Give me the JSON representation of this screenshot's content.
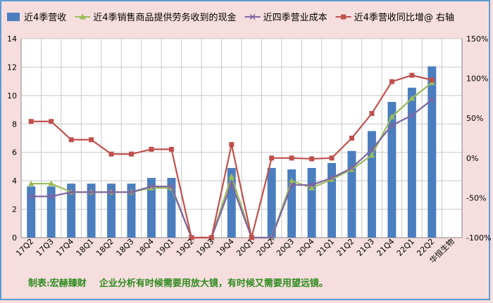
{
  "chart_data": {
    "type": "bar+line",
    "categories": [
      "17Q2",
      "17Q3",
      "17Q4",
      "18Q1",
      "18Q2",
      "18Q3",
      "18Q4",
      "19Q1",
      "19Q2",
      "19Q3",
      "19Q4",
      "20Q1",
      "20Q2",
      "20Q3",
      "20Q4",
      "21Q1",
      "21Q2",
      "21Q3",
      "21Q4",
      "22Q1",
      "22Q2"
    ],
    "extra_xlabel": "华恒生物",
    "y_left": {
      "min": 0,
      "max": 14,
      "step": 2
    },
    "y_right": {
      "min": -100,
      "max": 150,
      "step": 50,
      "tick_labels": [
        "-100%",
        "-50%",
        "0%",
        "50%",
        "100%",
        "150%"
      ]
    },
    "series": [
      {
        "name": "近4季营收",
        "type": "bar",
        "axis": "left",
        "color": "#4a7ebf",
        "values": [
          3.6,
          3.6,
          3.8,
          3.8,
          3.8,
          3.8,
          4.2,
          4.2,
          null,
          null,
          4.9,
          null,
          4.9,
          4.8,
          4.9,
          5.25,
          6.1,
          7.5,
          9.55,
          10.55,
          12.05
        ]
      },
      {
        "name": "近4季销售商品提供劳务收到的现金",
        "type": "line",
        "axis": "left",
        "color": "#9bbb59",
        "marker": "triangle",
        "values": [
          3.8,
          3.8,
          3.2,
          3.2,
          3.2,
          3.2,
          3.5,
          3.5,
          0,
          0,
          4.3,
          0,
          0,
          4.0,
          3.5,
          4.1,
          4.8,
          5.8,
          8.5,
          9.8,
          10.9
        ]
      },
      {
        "name": "近四季营业成本",
        "type": "line",
        "axis": "left",
        "color": "#7f64a3",
        "marker": "x",
        "values": [
          2.9,
          2.9,
          3.2,
          3.2,
          3.2,
          3.2,
          3.6,
          3.6,
          0,
          0,
          3.8,
          0,
          0,
          3.7,
          3.7,
          4.2,
          4.9,
          6.2,
          7.9,
          8.6,
          9.7
        ]
      },
      {
        "name": "近4季营收同比增@ 右轴",
        "type": "line",
        "axis": "right",
        "color": "#c0504d",
        "marker": "square",
        "values": [
          46,
          46,
          23,
          23,
          5,
          5,
          11,
          11,
          -100,
          -100,
          17,
          -100,
          0,
          0,
          -1,
          0,
          25,
          56,
          96,
          104,
          98
        ]
      }
    ],
    "legend_position": "top",
    "grid": true
  },
  "footer_text": "制表:宏赫臻财    企业分析有时候需要用放大镜，有时候又需要用望远镜。"
}
